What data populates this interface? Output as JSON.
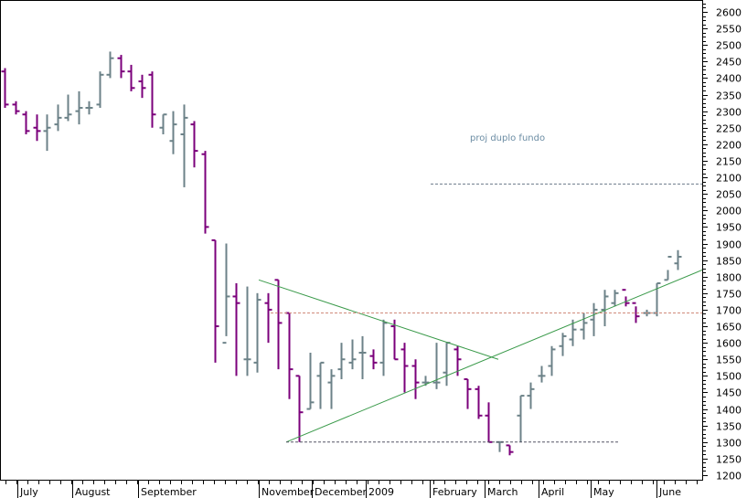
{
  "chart_data": {
    "type": "ohlc",
    "title": "",
    "xlabel": "",
    "ylabel": "",
    "ylim": [
      1190,
      2630
    ],
    "y_ticks": [
      1200,
      1250,
      1300,
      1350,
      1400,
      1450,
      1500,
      1550,
      1600,
      1650,
      1700,
      1750,
      1800,
      1850,
      1900,
      1950,
      2000,
      2050,
      2100,
      2150,
      2200,
      2250,
      2300,
      2350,
      2400,
      2450,
      2500,
      2550,
      2600
    ],
    "x_labels": [
      "July",
      "August",
      "September",
      "November",
      "December",
      "2009",
      "February",
      "March",
      "April",
      "May",
      "June"
    ],
    "colors": {
      "up": "#6c8288",
      "down": "#7b007b",
      "trendline": "#3a9a4a",
      "resistance": "#d08a7a",
      "support": "#555566",
      "projection": "#6c7a8a"
    },
    "bars": [
      [
        2420,
        2430,
        2310,
        2320
      ],
      [
        2320,
        2330,
        2290,
        2300
      ],
      [
        2290,
        2300,
        2230,
        2240
      ],
      [
        2250,
        2290,
        2210,
        2240
      ],
      [
        2240,
        2290,
        2180,
        2250
      ],
      [
        2260,
        2320,
        2240,
        2280
      ],
      [
        2280,
        2350,
        2270,
        2290
      ],
      [
        2300,
        2360,
        2260,
        2310
      ],
      [
        2310,
        2330,
        2290,
        2310
      ],
      [
        2320,
        2420,
        2310,
        2410
      ],
      [
        2410,
        2480,
        2400,
        2460
      ],
      [
        2460,
        2470,
        2400,
        2420
      ],
      [
        2420,
        2440,
        2360,
        2370
      ],
      [
        2390,
        2410,
        2340,
        2370
      ],
      [
        2410,
        2420,
        2250,
        2290
      ],
      [
        2250,
        2290,
        2230,
        2290
      ],
      [
        2210,
        2300,
        2170,
        2260
      ],
      [
        2230,
        2320,
        2070,
        2280
      ],
      [
        2260,
        2270,
        2130,
        2180
      ],
      [
        2170,
        2180,
        1930,
        1950
      ],
      [
        1910,
        1910,
        1540,
        1650
      ],
      [
        1600,
        1900,
        1620,
        1740
      ],
      [
        1740,
        1780,
        1500,
        1720
      ],
      [
        1550,
        1770,
        1500,
        1550
      ],
      [
        1540,
        1750,
        1510,
        1730
      ],
      [
        1720,
        1750,
        1600,
        1700
      ],
      [
        1790,
        1790,
        1520,
        1660
      ],
      [
        1690,
        1690,
        1430,
        1520
      ],
      [
        1500,
        1500,
        1300,
        1390
      ],
      [
        1400,
        1570,
        1400,
        1420
      ],
      [
        1500,
        1540,
        1400,
        1540
      ],
      [
        1480,
        1520,
        1400,
        1500
      ],
      [
        1520,
        1600,
        1490,
        1550
      ],
      [
        1540,
        1610,
        1520,
        1550
      ],
      [
        1570,
        1620,
        1490,
        1570
      ],
      [
        1560,
        1580,
        1520,
        1540
      ],
      [
        1540,
        1670,
        1500,
        1660
      ],
      [
        1650,
        1670,
        1550,
        1550
      ],
      [
        1580,
        1600,
        1450,
        1530
      ],
      [
        1530,
        1550,
        1430,
        1480
      ],
      [
        1480,
        1500,
        1470,
        1480
      ],
      [
        1480,
        1600,
        1460,
        1480
      ],
      [
        1510,
        1600,
        1470,
        1600
      ],
      [
        1580,
        1590,
        1500,
        1550
      ],
      [
        1490,
        1490,
        1400,
        1460
      ],
      [
        1460,
        1470,
        1370,
        1380
      ],
      [
        1380,
        1420,
        1300,
        1300
      ],
      [
        1300,
        1300,
        1270,
        1300
      ],
      [
        1290,
        1290,
        1260,
        1270
      ],
      [
        1380,
        1440,
        1300,
        1440
      ],
      [
        1440,
        1480,
        1400,
        1460
      ],
      [
        1500,
        1530,
        1480,
        1500
      ],
      [
        1530,
        1590,
        1500,
        1580
      ],
      [
        1590,
        1630,
        1560,
        1620
      ],
      [
        1610,
        1670,
        1590,
        1640
      ],
      [
        1640,
        1690,
        1610,
        1660
      ],
      [
        1670,
        1720,
        1620,
        1700
      ],
      [
        1700,
        1760,
        1650,
        1740
      ],
      [
        1720,
        1760,
        1710,
        1750
      ],
      [
        1760,
        1740,
        1710,
        1720
      ],
      [
        1720,
        1710,
        1660,
        1680
      ],
      [
        1690,
        1700,
        1680,
        1690
      ],
      [
        1690,
        1780,
        1680,
        1780
      ],
      [
        1790,
        1820,
        1790,
        1860
      ],
      [
        1840,
        1880,
        1820,
        1860
      ]
    ],
    "lines": [
      {
        "name": "downtrend",
        "from": [
          "Nov-start",
          1790
        ],
        "to": [
          "Mar-mid",
          1550
        ]
      },
      {
        "name": "uptrend",
        "from": [
          "Nov-mid",
          1300
        ],
        "to": [
          "Jun-end",
          1820
        ]
      },
      {
        "name": "resistance",
        "value": 1690
      },
      {
        "name": "support",
        "value": 1300
      },
      {
        "name": "projection",
        "value": 2080
      }
    ],
    "annotations": [
      {
        "text": "proj  duplo fundo"
      }
    ]
  }
}
